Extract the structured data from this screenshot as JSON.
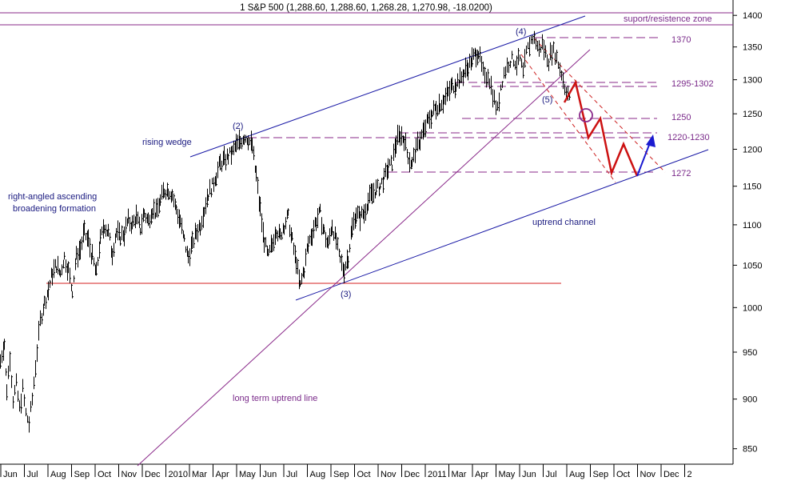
{
  "colors": {
    "background": "#ffffff",
    "price": "#000000",
    "channel": "#1a1aa6",
    "purple": "#8a2a8a",
    "red_line": "#d42020",
    "red_dash": "#cc1f1f",
    "projection_red": "#cc1111",
    "projection_blue": "#1a1ad0",
    "label_purple": "#7a2a8a",
    "label_blue": "#1a1a80"
  },
  "chart_data": {
    "type": "line",
    "title": "1 S&P 500 (1,288.60, 1,288.60, 1,268.28, 1,270.98, -18.0200)",
    "ylim": [
      835,
      1425
    ],
    "y_ticks": [
      850,
      900,
      950,
      1000,
      1050,
      1100,
      1150,
      1200,
      1250,
      1300,
      1350,
      1400
    ],
    "x_labels": [
      "Jun",
      "Jul",
      "Aug",
      "Sep",
      "Oct",
      "Nov",
      "Dec",
      "2010",
      "Mar",
      "Apr",
      "May",
      "Jun",
      "Jul",
      "Aug",
      "Sep",
      "Oct",
      "Nov",
      "Dec",
      "2011",
      "Mar",
      "Apr",
      "May",
      "Jun",
      "Jul",
      "Aug",
      "Sep",
      "Oct",
      "Nov",
      "Dec",
      "2"
    ],
    "series": [
      {
        "anchors": [
          [
            0,
            940
          ],
          [
            5,
            960
          ],
          [
            8,
            910
          ],
          [
            12,
            945
          ],
          [
            16,
            900
          ],
          [
            20,
            915
          ],
          [
            24,
            890
          ],
          [
            28,
            910
          ],
          [
            32,
            885
          ],
          [
            36,
            875
          ],
          [
            40,
            900
          ],
          [
            44,
            935
          ],
          [
            50,
            985
          ],
          [
            55,
            1005
          ],
          [
            60,
            1020
          ],
          [
            65,
            1040
          ],
          [
            70,
            1050
          ],
          [
            75,
            1040
          ],
          [
            80,
            1060
          ],
          [
            85,
            1045
          ],
          [
            90,
            1020
          ],
          [
            95,
            1060
          ],
          [
            100,
            1070
          ],
          [
            105,
            1090
          ],
          [
            110,
            1080
          ],
          [
            115,
            1060
          ],
          [
            120,
            1040
          ],
          [
            125,
            1080
          ],
          [
            130,
            1100
          ],
          [
            135,
            1090
          ],
          [
            140,
            1065
          ],
          [
            145,
            1090
          ],
          [
            150,
            1085
          ],
          [
            155,
            1090
          ],
          [
            160,
            1105
          ],
          [
            165,
            1100
          ],
          [
            170,
            1110
          ],
          [
            175,
            1095
          ],
          [
            180,
            1115
          ],
          [
            185,
            1105
          ],
          [
            190,
            1120
          ],
          [
            195,
            1115
          ],
          [
            200,
            1130
          ],
          [
            205,
            1145
          ],
          [
            210,
            1145
          ],
          [
            215,
            1140
          ],
          [
            220,
            1120
          ],
          [
            225,
            1105
          ],
          [
            230,
            1080
          ],
          [
            235,
            1060
          ],
          [
            240,
            1075
          ],
          [
            245,
            1090
          ],
          [
            250,
            1100
          ],
          [
            255,
            1120
          ],
          [
            260,
            1140
          ],
          [
            265,
            1150
          ],
          [
            270,
            1165
          ],
          [
            275,
            1180
          ],
          [
            280,
            1185
          ],
          [
            285,
            1190
          ],
          [
            290,
            1195
          ],
          [
            295,
            1205
          ],
          [
            300,
            1210
          ],
          [
            305,
            1218
          ],
          [
            310,
            1215
          ],
          [
            315,
            1205
          ],
          [
            320,
            1165
          ],
          [
            325,
            1120
          ],
          [
            330,
            1080
          ],
          [
            335,
            1060
          ],
          [
            340,
            1075
          ],
          [
            345,
            1095
          ],
          [
            350,
            1085
          ],
          [
            355,
            1100
          ],
          [
            360,
            1110
          ],
          [
            365,
            1080
          ],
          [
            370,
            1055
          ],
          [
            375,
            1025
          ],
          [
            380,
            1045
          ],
          [
            385,
            1075
          ],
          [
            390,
            1090
          ],
          [
            395,
            1105
          ],
          [
            400,
            1115
          ],
          [
            405,
            1090
          ],
          [
            410,
            1075
          ],
          [
            415,
            1100
          ],
          [
            420,
            1080
          ],
          [
            425,
            1055
          ],
          [
            430,
            1045
          ],
          [
            435,
            1060
          ],
          [
            440,
            1095
          ],
          [
            445,
            1115
          ],
          [
            450,
            1110
          ],
          [
            455,
            1115
          ],
          [
            460,
            1130
          ],
          [
            465,
            1140
          ],
          [
            470,
            1145
          ],
          [
            475,
            1150
          ],
          [
            480,
            1160
          ],
          [
            485,
            1175
          ],
          [
            490,
            1180
          ],
          [
            495,
            1210
          ],
          [
            500,
            1220
          ],
          [
            505,
            1215
          ],
          [
            510,
            1190
          ],
          [
            515,
            1180
          ],
          [
            520,
            1200
          ],
          [
            525,
            1215
          ],
          [
            530,
            1225
          ],
          [
            535,
            1240
          ],
          [
            540,
            1250
          ],
          [
            545,
            1260
          ],
          [
            550,
            1265
          ],
          [
            555,
            1270
          ],
          [
            560,
            1280
          ],
          [
            565,
            1290
          ],
          [
            570,
            1295
          ],
          [
            575,
            1300
          ],
          [
            580,
            1310
          ],
          [
            585,
            1320
          ],
          [
            590,
            1330
          ],
          [
            595,
            1340
          ],
          [
            598,
            1342
          ],
          [
            602,
            1320
          ],
          [
            606,
            1300
          ],
          [
            610,
            1310
          ],
          [
            614,
            1290
          ],
          [
            618,
            1270
          ],
          [
            622,
            1255
          ],
          [
            626,
            1290
          ],
          [
            630,
            1310
          ],
          [
            634,
            1320
          ],
          [
            638,
            1330
          ],
          [
            642,
            1330
          ],
          [
            646,
            1325
          ],
          [
            650,
            1330
          ],
          [
            654,
            1310
          ],
          [
            658,
            1340
          ],
          [
            662,
            1355
          ],
          [
            666,
            1365
          ],
          [
            670,
            1358
          ],
          [
            674,
            1345
          ],
          [
            678,
            1355
          ],
          [
            682,
            1340
          ],
          [
            686,
            1330
          ],
          [
            690,
            1345
          ],
          [
            694,
            1340
          ],
          [
            698,
            1325
          ],
          [
            702,
            1310
          ],
          [
            706,
            1290
          ],
          [
            710,
            1280
          ],
          [
            712,
            1271
          ]
        ]
      }
    ]
  },
  "annotations": {
    "suport_resistence_zone": "suport/resistence zone",
    "label_1370": "1370",
    "label_1295_1302": "1295-1302",
    "label_1250": "1250",
    "label_1220_1230": "1220-1230",
    "label_1272": "1272",
    "wave_2": "(2)",
    "wave_3": "(3)",
    "wave_4": "(4)",
    "wave_5": "(5)",
    "rising_wedge": "rising wedge",
    "broadening_line1": "right-angled ascending",
    "broadening_line2": "broadening formation",
    "uptrend_channel": "uptrend channel",
    "long_term_uptrend_line": "long term uptrend line"
  }
}
